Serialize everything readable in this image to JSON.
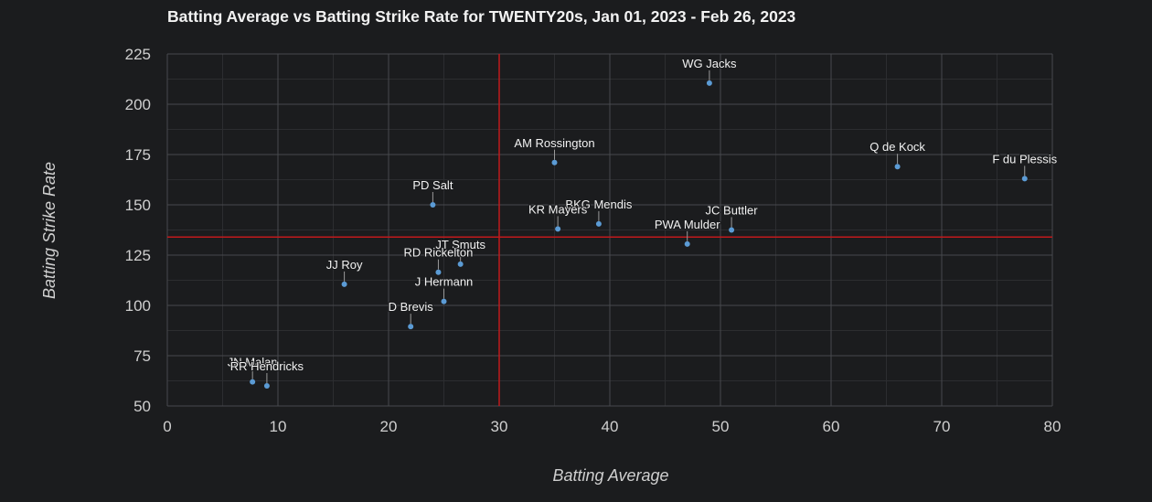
{
  "chart_data": {
    "type": "scatter",
    "title": "Batting Average vs Batting Strike Rate for TWENTY20s, Jan 01, 2023 - Feb 26, 2023",
    "xlabel": "Batting Average",
    "ylabel": "Batting Strike Rate",
    "xlim": [
      0,
      80
    ],
    "ylim": [
      50,
      225
    ],
    "xticks": [
      0,
      10,
      20,
      30,
      40,
      50,
      60,
      70,
      80
    ],
    "yticks": [
      50,
      75,
      100,
      125,
      150,
      175,
      200,
      225
    ],
    "grid": true,
    "reference_lines": {
      "x": 30,
      "y": 134,
      "color": "#c0191c"
    },
    "point_color": "#5b9bd5",
    "points": [
      {
        "name": "WG Jacks",
        "x": 49,
        "y": 210.5
      },
      {
        "name": "AM Rossington",
        "x": 35,
        "y": 171
      },
      {
        "name": "Q de Kock",
        "x": 66,
        "y": 169
      },
      {
        "name": "F du Plessis",
        "x": 77.5,
        "y": 163
      },
      {
        "name": "PD Salt",
        "x": 24,
        "y": 150
      },
      {
        "name": "BKG Mendis",
        "x": 39,
        "y": 140.5
      },
      {
        "name": "KR Mayers",
        "x": 35.3,
        "y": 138
      },
      {
        "name": "JC Buttler",
        "x": 51,
        "y": 137.5
      },
      {
        "name": "PWA Mulder",
        "x": 47,
        "y": 130.5
      },
      {
        "name": "JT Smuts",
        "x": 26.5,
        "y": 120.5
      },
      {
        "name": "RD Rickelton",
        "x": 24.5,
        "y": 116.5
      },
      {
        "name": "JJ Roy",
        "x": 16,
        "y": 110.5
      },
      {
        "name": "J Hermann",
        "x": 25,
        "y": 102
      },
      {
        "name": "D Brevis",
        "x": 22,
        "y": 89.5
      },
      {
        "name": "JN Malan",
        "x": 7.7,
        "y": 62
      },
      {
        "name": "RR Hendricks",
        "x": 9,
        "y": 60
      }
    ]
  }
}
